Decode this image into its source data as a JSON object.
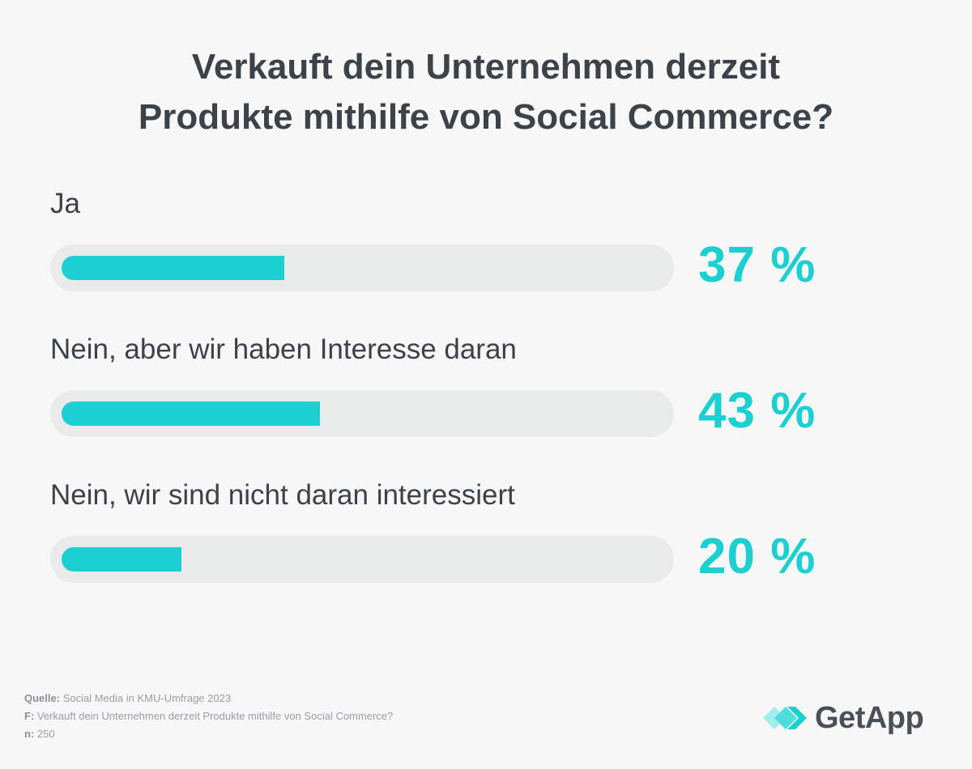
{
  "chart_data": {
    "type": "bar",
    "orientation": "horizontal",
    "title": "Verkauft dein Unternehmen derzeit Produkte mithilfe von Social Commerce?",
    "title_lines": [
      "Verkauft dein Unternehmen derzeit",
      "Produkte mithilfe von Social Commerce?"
    ],
    "categories": [
      "Ja",
      "Nein, aber wir haben Interesse daran",
      "Nein, wir sind nicht daran interessiert"
    ],
    "values": [
      37,
      43,
      20
    ],
    "value_labels": [
      "37 %",
      "43 %",
      "20 %"
    ],
    "unit": "%",
    "xlim": [
      0,
      100
    ],
    "colors": {
      "fill": "#1ccfd0",
      "track": "#e9eaea"
    }
  },
  "footer": {
    "source_label": "Quelle:",
    "source_text": "Social Media in KMU-Umfrage 2023",
    "question_label": "F:",
    "question_text": "Verkauft dein Unternehmen derzeit Produkte mithilfe von Social Commerce?",
    "n_label": "n:",
    "n_value": "250"
  },
  "logo": {
    "text": "GetApp",
    "icon": "getapp-chevrons-icon"
  }
}
